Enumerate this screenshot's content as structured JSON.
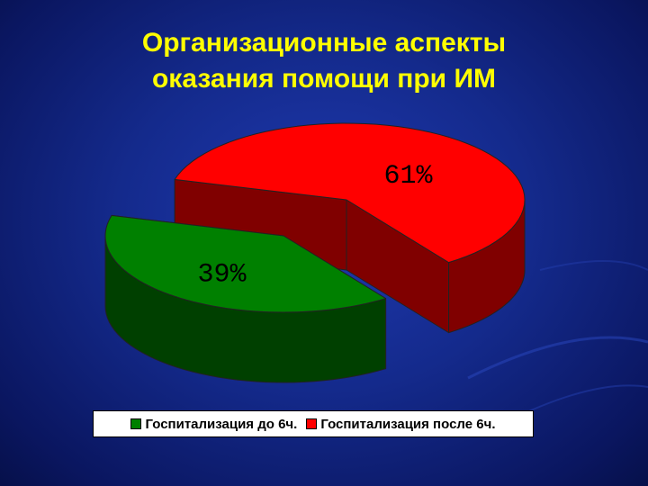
{
  "chart_data": {
    "type": "pie3d",
    "title": "Организационные аспекты оказания помощи при ИМ",
    "categories": [
      "Госпитализация до 6ч.",
      "Госпитализация после 6ч."
    ],
    "values": [
      39,
      61
    ],
    "value_labels": [
      "39%",
      "61%"
    ],
    "colors": [
      "#008000",
      "#ff0000"
    ],
    "legend": "bottom"
  }
}
